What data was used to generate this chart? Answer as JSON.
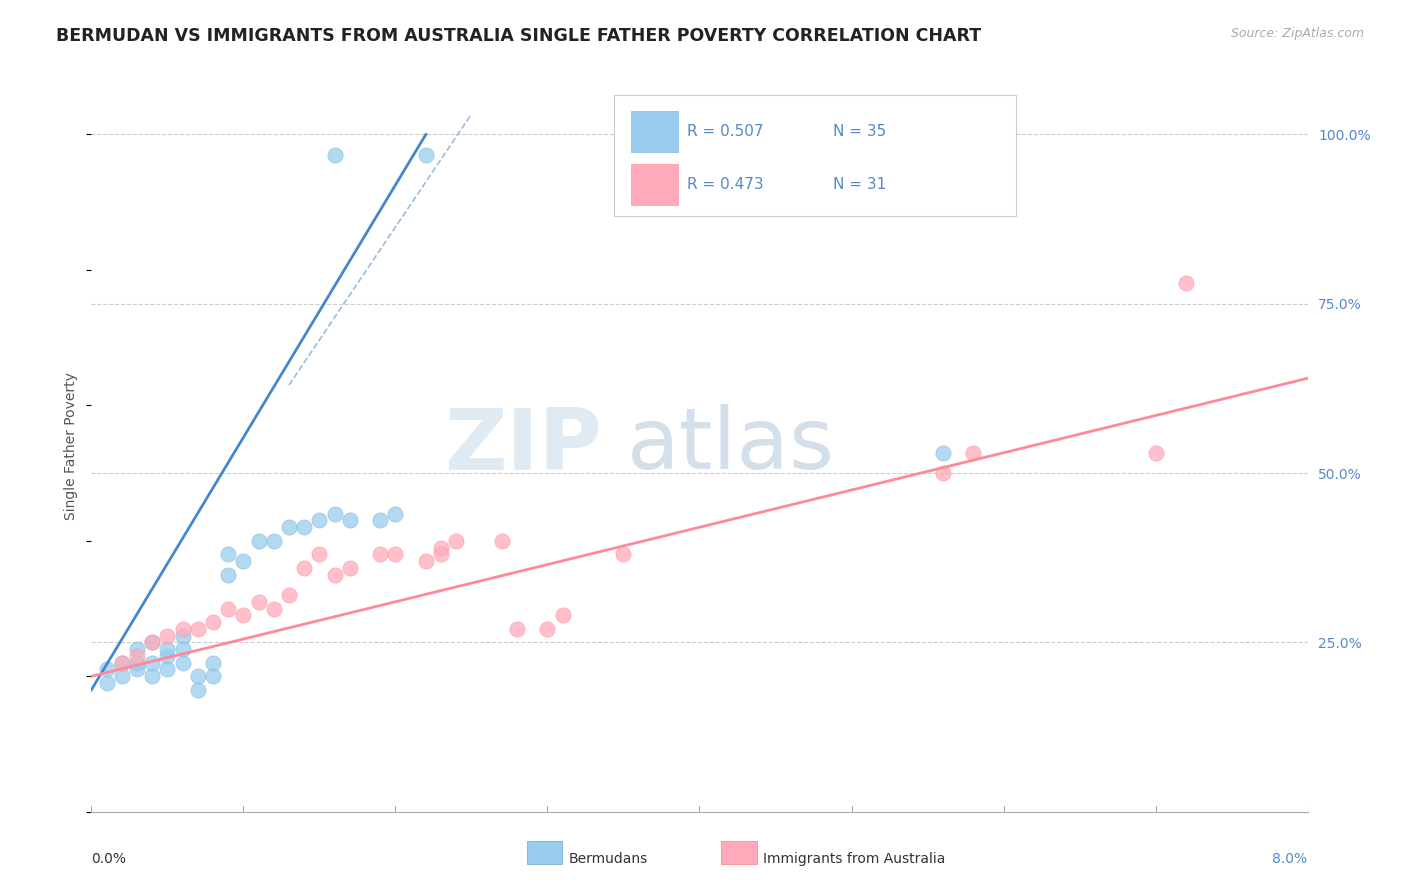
{
  "title": "BERMUDAN VS IMMIGRANTS FROM AUSTRALIA SINGLE FATHER POVERTY CORRELATION CHART",
  "source": "Source: ZipAtlas.com",
  "ylabel": "Single Father Poverty",
  "ylabel_right_labels": [
    "100.0%",
    "75.0%",
    "50.0%",
    "25.0%"
  ],
  "ylabel_right_positions": [
    1.0,
    0.75,
    0.5,
    0.25
  ],
  "xlim": [
    0.0,
    0.08
  ],
  "ylim": [
    0.0,
    1.08
  ],
  "R1": "0.507",
  "N1": "35",
  "R2": "0.473",
  "N2": "31",
  "blue_scatter_x": [
    0.001,
    0.001,
    0.002,
    0.002,
    0.003,
    0.003,
    0.003,
    0.004,
    0.004,
    0.004,
    0.005,
    0.005,
    0.005,
    0.006,
    0.006,
    0.006,
    0.007,
    0.007,
    0.008,
    0.008,
    0.009,
    0.009,
    0.01,
    0.011,
    0.012,
    0.013,
    0.014,
    0.015,
    0.016,
    0.017,
    0.019,
    0.02,
    0.056,
    0.016,
    0.022
  ],
  "blue_scatter_y": [
    0.21,
    0.19,
    0.22,
    0.2,
    0.24,
    0.21,
    0.22,
    0.25,
    0.2,
    0.22,
    0.23,
    0.21,
    0.24,
    0.26,
    0.22,
    0.24,
    0.2,
    0.18,
    0.22,
    0.2,
    0.35,
    0.38,
    0.37,
    0.4,
    0.4,
    0.42,
    0.42,
    0.43,
    0.44,
    0.43,
    0.43,
    0.44,
    0.53,
    0.97,
    0.97
  ],
  "pink_scatter_x": [
    0.002,
    0.003,
    0.004,
    0.005,
    0.006,
    0.007,
    0.008,
    0.009,
    0.01,
    0.011,
    0.012,
    0.013,
    0.014,
    0.015,
    0.016,
    0.017,
    0.019,
    0.02,
    0.022,
    0.023,
    0.023,
    0.024,
    0.027,
    0.028,
    0.03,
    0.031,
    0.035,
    0.056,
    0.058,
    0.07,
    0.072
  ],
  "pink_scatter_y": [
    0.22,
    0.23,
    0.25,
    0.26,
    0.27,
    0.27,
    0.28,
    0.3,
    0.29,
    0.31,
    0.3,
    0.32,
    0.36,
    0.38,
    0.35,
    0.36,
    0.38,
    0.38,
    0.37,
    0.39,
    0.38,
    0.4,
    0.4,
    0.27,
    0.27,
    0.29,
    0.38,
    0.5,
    0.53,
    0.53,
    0.78
  ],
  "blue_solid_line_x": [
    0.0,
    0.022
  ],
  "blue_solid_line_y": [
    0.18,
    1.0
  ],
  "blue_dash_line_x": [
    0.013,
    0.025
  ],
  "blue_dash_line_y": [
    0.63,
    1.03
  ],
  "pink_line_x": [
    0.0,
    0.08
  ],
  "pink_line_y": [
    0.2,
    0.64
  ]
}
